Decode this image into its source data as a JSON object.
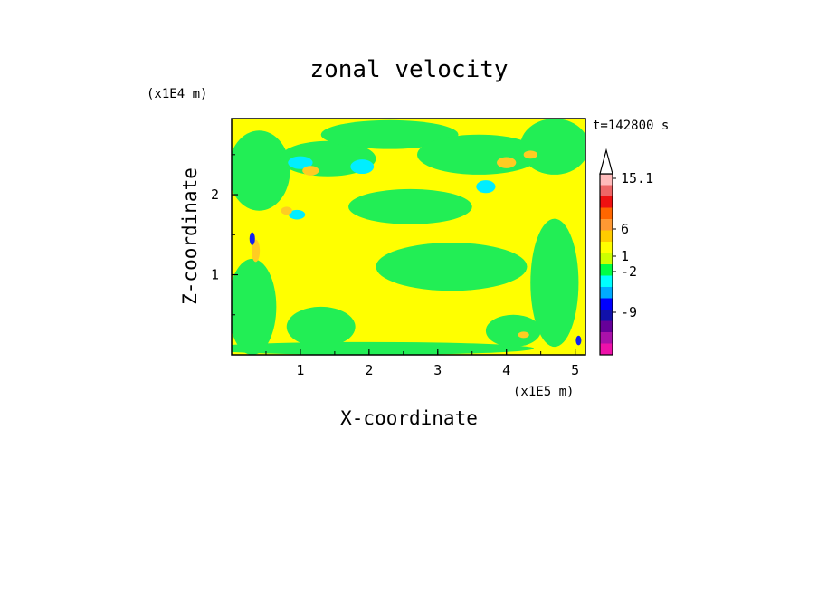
{
  "chart_data": {
    "type": "heatmap",
    "title": "zonal velocity",
    "xlabel": "X-coordinate",
    "ylabel": "Z-coordinate",
    "x_unit": "(x1E5 m)",
    "y_unit": "(x1E4 m)",
    "time_label": "t=142800 s",
    "xlim": [
      0,
      5.15
    ],
    "ylim": [
      0,
      2.95
    ],
    "x_ticks": [
      1,
      2,
      3,
      4,
      5
    ],
    "y_ticks": [
      1,
      2
    ],
    "x_tick_labels": [
      "1",
      "2",
      "3",
      "4",
      "5"
    ],
    "y_tick_labels": [
      "1",
      "2"
    ],
    "colorbar": {
      "colors": [
        "#ee11aa",
        "#aa11aa",
        "#660099",
        "#1111aa",
        "#0000ff",
        "#00aaff",
        "#00ffff",
        "#00ff44",
        "#ccff00",
        "#ffff00",
        "#ffcc00",
        "#ff9933",
        "#ff6600",
        "#ee1111",
        "#ee6666",
        "#ffbbbb"
      ],
      "labels": [
        "15.1",
        "6",
        "1",
        "-2",
        "-9"
      ],
      "label_levels": [
        15.1,
        6,
        1,
        -2,
        -9
      ],
      "extend_top": true
    },
    "regions": [
      {
        "kind": "green",
        "cx": 0.4,
        "cy": 2.3,
        "rx": 0.45,
        "ry": 0.5
      },
      {
        "kind": "green",
        "cx": 1.4,
        "cy": 2.45,
        "rx": 0.7,
        "ry": 0.22
      },
      {
        "kind": "green",
        "cx": 2.3,
        "cy": 2.75,
        "rx": 1.0,
        "ry": 0.18
      },
      {
        "kind": "green",
        "cx": 3.6,
        "cy": 2.5,
        "rx": 0.9,
        "ry": 0.25
      },
      {
        "kind": "green",
        "cx": 4.7,
        "cy": 2.6,
        "rx": 0.5,
        "ry": 0.35
      },
      {
        "kind": "green",
        "cx": 3.2,
        "cy": 1.1,
        "rx": 1.1,
        "ry": 0.3
      },
      {
        "kind": "green",
        "cx": 2.6,
        "cy": 1.85,
        "rx": 0.9,
        "ry": 0.22
      },
      {
        "kind": "green",
        "cx": 0.3,
        "cy": 0.6,
        "rx": 0.35,
        "ry": 0.6
      },
      {
        "kind": "green",
        "cx": 4.7,
        "cy": 0.9,
        "rx": 0.35,
        "ry": 0.8
      },
      {
        "kind": "green",
        "cx": 1.3,
        "cy": 0.35,
        "rx": 0.5,
        "ry": 0.25
      },
      {
        "kind": "green",
        "cx": 4.1,
        "cy": 0.3,
        "rx": 0.4,
        "ry": 0.2
      },
      {
        "kind": "green",
        "cx": 2.0,
        "cy": 0.08,
        "rx": 2.4,
        "ry": 0.08
      },
      {
        "kind": "cyan",
        "cx": 1.0,
        "cy": 2.4,
        "rx": 0.18,
        "ry": 0.08
      },
      {
        "kind": "cyan",
        "cx": 1.9,
        "cy": 2.35,
        "rx": 0.17,
        "ry": 0.09
      },
      {
        "kind": "cyan",
        "cx": 3.7,
        "cy": 2.1,
        "rx": 0.14,
        "ry": 0.08
      },
      {
        "kind": "cyan",
        "cx": 0.95,
        "cy": 1.75,
        "rx": 0.12,
        "ry": 0.06
      },
      {
        "kind": "orange",
        "cx": 1.15,
        "cy": 2.3,
        "rx": 0.12,
        "ry": 0.06
      },
      {
        "kind": "orange",
        "cx": 4.0,
        "cy": 2.4,
        "rx": 0.14,
        "ry": 0.07
      },
      {
        "kind": "orange",
        "cx": 4.35,
        "cy": 2.5,
        "rx": 0.1,
        "ry": 0.05
      },
      {
        "kind": "orange",
        "cx": 0.35,
        "cy": 1.3,
        "rx": 0.06,
        "ry": 0.14
      },
      {
        "kind": "orange",
        "cx": 0.8,
        "cy": 1.8,
        "rx": 0.08,
        "ry": 0.05
      },
      {
        "kind": "orange",
        "cx": 4.25,
        "cy": 0.25,
        "rx": 0.08,
        "ry": 0.04
      },
      {
        "kind": "blue",
        "cx": 0.3,
        "cy": 1.45,
        "rx": 0.04,
        "ry": 0.08
      },
      {
        "kind": "blue",
        "cx": 5.05,
        "cy": 0.18,
        "rx": 0.04,
        "ry": 0.06
      }
    ]
  }
}
